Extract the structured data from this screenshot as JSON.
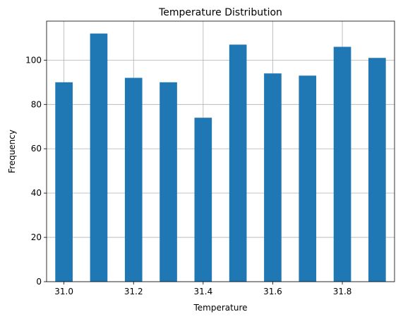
{
  "chart_data": {
    "type": "bar",
    "title": "Temperature Distribution",
    "xlabel": "Temperature",
    "ylabel": "Frequency",
    "bin_centers": [
      31.0,
      31.1,
      31.2,
      31.3,
      31.4,
      31.5,
      31.6,
      31.7,
      31.8,
      31.9
    ],
    "values": [
      90,
      112,
      92,
      90,
      74,
      107,
      94,
      93,
      106,
      101
    ],
    "xlim": [
      30.95,
      31.95
    ],
    "ylim": [
      0,
      117.6
    ],
    "x_ticks": [
      31.0,
      31.2,
      31.4,
      31.6,
      31.8
    ],
    "x_tick_labels": [
      "31.0",
      "31.2",
      "31.4",
      "31.6",
      "31.8"
    ],
    "y_ticks": [
      0,
      20,
      40,
      60,
      80,
      100
    ],
    "y_tick_labels": [
      "0",
      "20",
      "40",
      "60",
      "80",
      "100"
    ],
    "grid": true,
    "bar_color": "#1f77b4",
    "grid_color": "#b0b0b0"
  }
}
